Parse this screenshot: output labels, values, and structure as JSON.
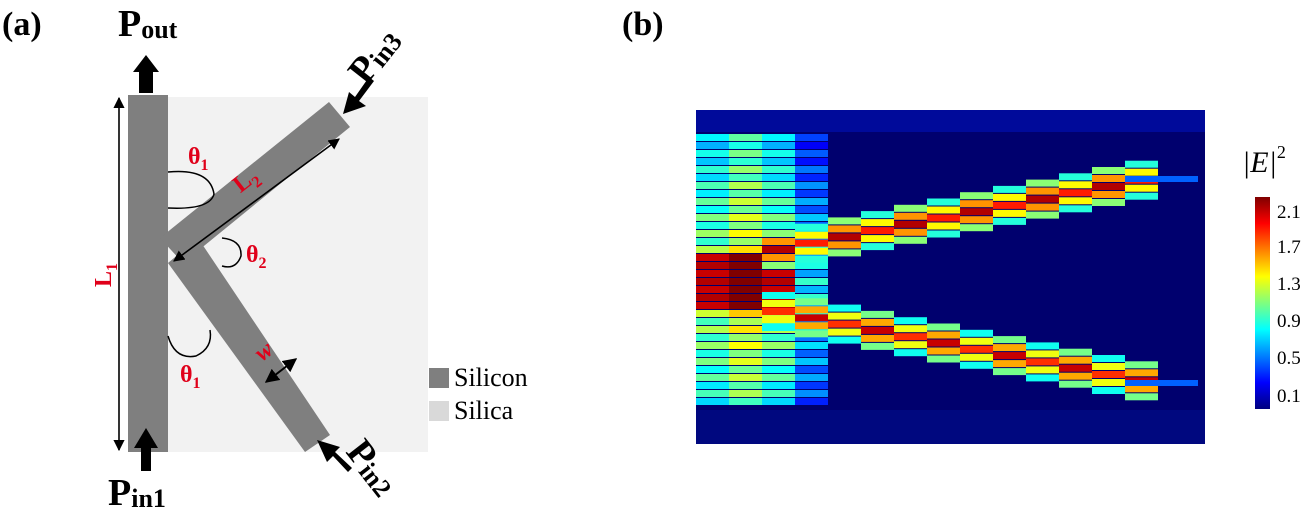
{
  "panel_a": {
    "label": "(a)",
    "p_out": {
      "main": "P",
      "sub": "out"
    },
    "p_in1": {
      "main": "P",
      "sub": "in1"
    },
    "p_in2": {
      "main": "P",
      "sub": "in2"
    },
    "p_in3": {
      "main": "P",
      "sub": "in3"
    },
    "l1": {
      "main": "L",
      "sub": "1"
    },
    "l2": {
      "main": "L",
      "sub": "2"
    },
    "theta1_top": {
      "main": "θ",
      "sub": "1"
    },
    "theta1_bottom": {
      "main": "θ",
      "sub": "1"
    },
    "theta2": {
      "main": "θ",
      "sub": "2"
    },
    "w_label": "w",
    "legend": [
      {
        "label": "Silicon",
        "color": "#7f7f7f"
      },
      {
        "label": "Silica",
        "color": "#d9d9d9"
      }
    ],
    "colors": {
      "silicon": "#7f7f7f",
      "silica": "#f2f2f2",
      "annotation": "#e0001a",
      "arrow": "#000000"
    }
  },
  "panel_b": {
    "label": "(b)",
    "colorbar_title": "|E|",
    "colorbar_exponent": "2",
    "colorbar_ticks": [
      "2.1",
      "1.7",
      "1.3",
      "0.9",
      "0.5",
      "0.1"
    ],
    "colormap": "jet"
  }
}
